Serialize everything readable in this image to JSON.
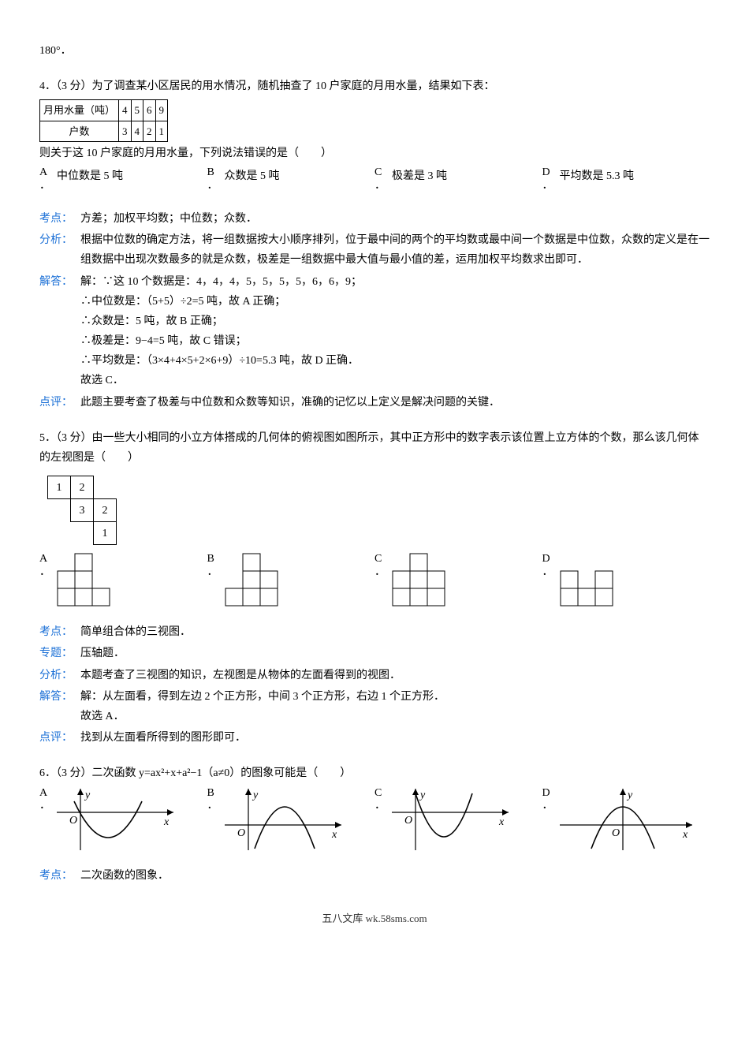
{
  "p180": "180°．",
  "q4": {
    "stem": "4．（3 分）为了调查某小区居民的用水情况，随机抽查了 10 户家庭的月用水量，结果如下表：",
    "table": {
      "row1": [
        "月用水量（吨）",
        "4",
        "5",
        "6",
        "9"
      ],
      "row2": [
        "户数",
        "3",
        "4",
        "2",
        "1"
      ]
    },
    "stem2": "则关于这 10 户家庭的月用水量，下列说法错误的是（　　）",
    "options": {
      "A": "中位数是 5 吨",
      "B": "众数是 5 吨",
      "C": "极差是 3 吨",
      "D": "平均数是 5.3 吨"
    },
    "kaodian_lbl": "考点：",
    "kaodian": "方差；加权平均数；中位数；众数．",
    "fenxi_lbl": "分析：",
    "fenxi": "根据中位数的确定方法，将一组数据按大小顺序排列，位于最中间的两个的平均数或最中间一个数据是中位数，众数的定义是在一组数据中出现次数最多的就是众数，极差是一组数据中最大值与最小值的差，运用加权平均数求出即可．",
    "jieda_lbl": "解答：",
    "jieda": [
      "解：∵这 10 个数据是：4，4，4，5，5，5，5，6，6，9；",
      "∴中位数是：（5+5）÷2=5 吨，故 A 正确；",
      "∴众数是：5 吨，故 B 正确；",
      "∴极差是：9−4=5 吨，故 C 错误；",
      "∴平均数是：（3×4+4×5+2×6+9）÷10=5.3 吨，故 D 正确．",
      "故选 C．"
    ],
    "dianping_lbl": "点评：",
    "dianping": "此题主要考查了极差与中位数和众数等知识，准确的记忆以上定义是解决问题的关键．"
  },
  "q5": {
    "stem": "5．（3 分）由一些大小相同的小立方体搭成的几何体的俯视图如图所示，其中正方形中的数字表示该位置上立方体的个数，那么该几何体的左视图是（　　）",
    "grid": {
      "cells": [
        [
          {
            "v": "1",
            "b": true
          },
          {
            "v": "2",
            "b": true
          },
          {
            "v": "",
            "b": false
          }
        ],
        [
          {
            "v": "",
            "b": false
          },
          {
            "v": "3",
            "b": true
          },
          {
            "v": "2",
            "b": true
          }
        ],
        [
          {
            "v": "",
            "b": false
          },
          {
            "v": "",
            "b": false
          },
          {
            "v": "1",
            "b": true
          }
        ]
      ],
      "cell_size": 26
    },
    "opts": {
      "A": {
        "cols": 3,
        "heights": [
          2,
          3,
          1
        ]
      },
      "B": {
        "cols": 3,
        "heights": [
          1,
          3,
          2
        ]
      },
      "C": {
        "cols": 3,
        "heights": [
          2,
          3,
          2
        ]
      },
      "D": {
        "cols": 3,
        "heights": [
          2,
          1,
          2
        ]
      }
    },
    "opt_cell": 22,
    "opt_max_h": 3,
    "kaodian_lbl": "考点：",
    "kaodian": "简单组合体的三视图．",
    "zhuanti_lbl": "专题：",
    "zhuanti": "压轴题．",
    "fenxi_lbl": "分析：",
    "fenxi": "本题考查了三视图的知识，左视图是从物体的左面看得到的视图．",
    "jieda_lbl": "解答：",
    "jieda": [
      "解：从左面看，得到左边 2 个正方形，中间 3 个正方形，右边 1 个正方形．",
      "故选 A．"
    ],
    "dianping_lbl": "点评：",
    "dianping": "找到从左面看所得到的图形即可．"
  },
  "q6": {
    "stem": "6．（3 分）二次函数 y=ax²+x+a²−1（a≠0）的图象可能是（　　）",
    "opt_colors": {
      "axis": "#000000",
      "curve": "#000000"
    },
    "kaodian_lbl": "考点：",
    "kaodian": "二次函数的图象．"
  },
  "footer": "五八文库 wk.58sms.com"
}
